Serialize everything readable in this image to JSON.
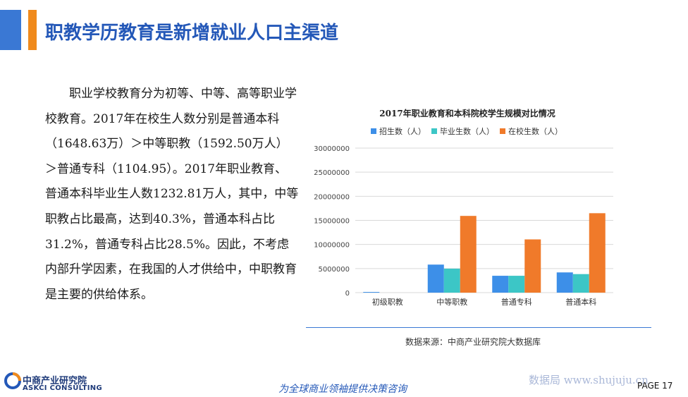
{
  "header": {
    "title": "职教学历教育是新增就业人口主渠道",
    "colors": {
      "accent_blue": "#3a78d4",
      "accent_orange": "#f08a1c",
      "title": "#2458b8"
    }
  },
  "body": {
    "paragraph": "职业学校教育分为初等、中等、高等职业学校教育。2017年在校生人数分别是普通本科（1648.63万）＞中等职教（1592.50万人）＞普通专科（1104.95）。2017年职业教育、普通本科毕业生人数1232.81万人，其中，中等职教占比最高，达到40.3%，普通本科占比31.2%，普通专科占比28.5%。因此，不考虑内部升学因素，在我国的人才供给中，中职教育是主要的供给体系。"
  },
  "chart_data": {
    "type": "bar",
    "title": "2017年职业教育和本科院校学生规模对比情况",
    "categories": [
      "初级职教",
      "中等职教",
      "普通专科",
      "普通本科"
    ],
    "series": [
      {
        "name": "招生数（人）",
        "color": "#3d8fe8",
        "values": [
          140000,
          5820000,
          3500000,
          4200000
        ]
      },
      {
        "name": "毕业生数（人）",
        "color": "#3cc6c6",
        "values": [
          0,
          4980000,
          3500000,
          3850000
        ]
      },
      {
        "name": "在校生数（人）",
        "color": "#f07a2a",
        "values": [
          0,
          15925000,
          11049500,
          16486300
        ]
      }
    ],
    "ylim": [
      0,
      30000000
    ],
    "yticks": [
      "0",
      "5000000",
      "10000000",
      "15000000",
      "20000000",
      "25000000",
      "30000000"
    ],
    "grid": true,
    "legend_position": "top"
  },
  "source": {
    "text": "数据来源：中商产业研究院大数据库"
  },
  "footer": {
    "logo_cn": "中商产业研究院",
    "logo_en": "ASKCI CONSULTING",
    "slogan": "为全球商业领袖提供决策咨询",
    "watermark": "数据局 www.shujuju.cn",
    "page_label": "PAGE 17"
  }
}
